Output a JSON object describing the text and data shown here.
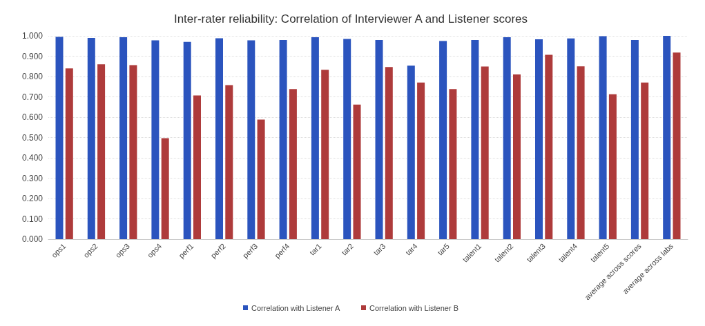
{
  "chart_data": {
    "type": "bar",
    "title": "Inter-rater reliability: Correlation of Interviewer A and Listener scores",
    "categories": [
      "ops1",
      "ops2",
      "ops3",
      "ops4",
      "perf1",
      "perf2",
      "perf3",
      "perf4",
      "tar1",
      "tar2",
      "tar3",
      "tar4",
      "tar5",
      "talent1",
      "talent2",
      "talent3",
      "talent4",
      "talent5",
      "average across scores",
      "average across labs"
    ],
    "series": [
      {
        "name": "Correlation with Listener A",
        "color": "#2b54be",
        "values": [
          0.995,
          0.99,
          0.993,
          0.978,
          0.97,
          0.988,
          0.978,
          0.98,
          0.993,
          0.985,
          0.98,
          0.853,
          0.975,
          0.98,
          0.993,
          0.983,
          0.987,
          0.998,
          0.98,
          1.0
        ]
      },
      {
        "name": "Correlation with Listener B",
        "color": "#ae3b3b",
        "values": [
          0.84,
          0.86,
          0.856,
          0.497,
          0.707,
          0.758,
          0.588,
          0.738,
          0.833,
          0.662,
          0.847,
          0.77,
          0.738,
          0.849,
          0.81,
          0.907,
          0.85,
          0.713,
          0.77,
          0.918
        ]
      }
    ],
    "ylim": [
      0,
      1
    ],
    "yticks": [
      {
        "value": 0,
        "label": "0.000"
      },
      {
        "value": 0.1,
        "label": "0.100"
      },
      {
        "value": 0.2,
        "label": "0.200"
      },
      {
        "value": 0.3,
        "label": "0.300"
      },
      {
        "value": 0.4,
        "label": "0.400"
      },
      {
        "value": 0.5,
        "label": "0.500"
      },
      {
        "value": 0.6,
        "label": "0.600"
      },
      {
        "value": 0.7,
        "label": "0.700"
      },
      {
        "value": 0.8,
        "label": "0.800"
      },
      {
        "value": 0.9,
        "label": "0.900"
      },
      {
        "value": 1,
        "label": "1.000"
      }
    ],
    "grid": "y",
    "legend": "bottom"
  }
}
